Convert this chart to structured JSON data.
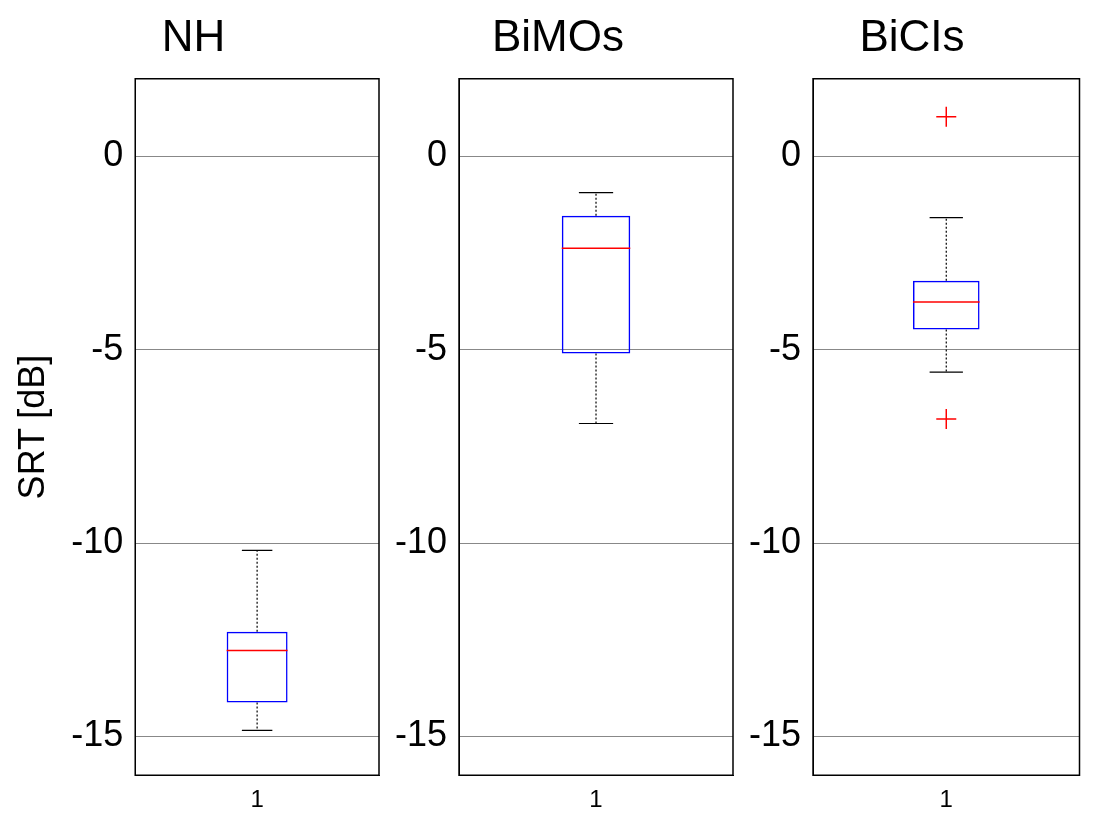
{
  "chart_data": [
    {
      "type": "box",
      "title": "NH",
      "ylabel": "SRT [dB]",
      "categories": [
        "1"
      ],
      "color": "#0000ff",
      "ylim": [
        -16,
        2
      ],
      "yticks": [
        -15,
        -10,
        -5,
        0
      ],
      "grid": "y",
      "boxes": [
        {
          "low": -14.84,
          "q1": -14.12,
          "median": -12.78,
          "q3": -12.29,
          "high": -10.19
        }
      ]
    },
    {
      "type": "box",
      "title": "BiMOs",
      "categories": [
        "1"
      ],
      "color": "#0000ff",
      "ylim": [
        -16,
        2
      ],
      "yticks": [
        -15,
        -10,
        -5,
        0
      ],
      "grid": "y",
      "boxes": [
        {
          "low": -6.91,
          "q1": -5.1,
          "median": -2.38,
          "q3": -1.54,
          "high": -0.94
        }
      ]
    },
    {
      "type": "box",
      "title": "BiCIs",
      "categories": [
        "1"
      ],
      "color": "#0000ff",
      "ylim": [
        -16,
        2
      ],
      "yticks": [
        -15,
        -10,
        -5,
        0
      ],
      "grid": "y",
      "boxes": [
        {
          "low": -5.58,
          "q1": -4.48,
          "median": -3.77,
          "q3": -3.22,
          "high": -1.59,
          "outliers": [
            1.02,
            -6.79
          ]
        }
      ]
    }
  ]
}
